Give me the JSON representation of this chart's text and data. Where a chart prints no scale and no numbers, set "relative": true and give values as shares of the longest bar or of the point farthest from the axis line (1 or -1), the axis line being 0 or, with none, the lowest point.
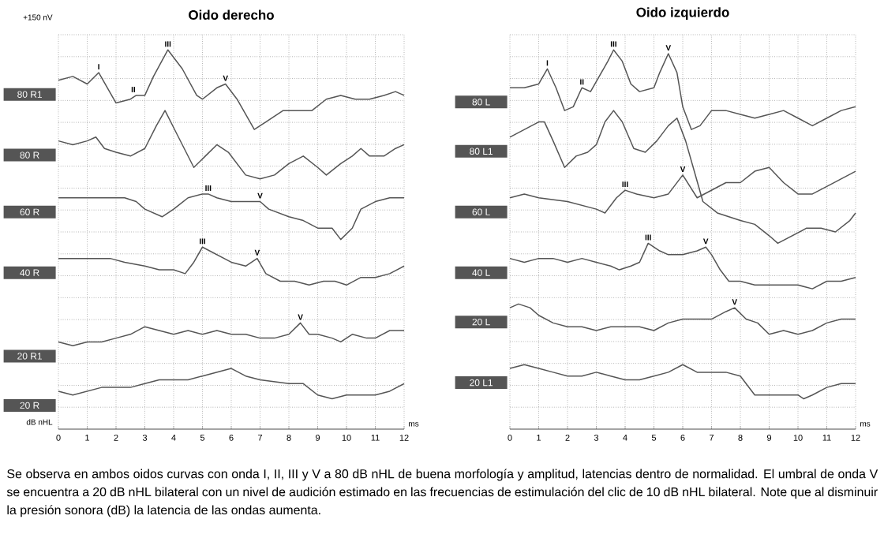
{
  "chart_data": [
    {
      "type": "line",
      "title": "Oido derecho",
      "relative": true,
      "grid": true,
      "xlim": [
        0,
        12
      ],
      "xticks": [
        0,
        1,
        2,
        3,
        4,
        5,
        6,
        7,
        8,
        9,
        10,
        11,
        12
      ],
      "series": [
        {
          "name": "80 R1",
          "color": "#555555",
          "x": [
            0,
            0.5,
            1,
            1.4,
            1.7,
            2,
            2.5,
            2.7,
            3,
            3.3,
            3.8,
            4.3,
            4.8,
            5,
            5.5,
            5.8,
            6.2,
            6.8,
            7.2,
            7.8,
            8.3,
            8.8,
            9.3,
            9.8,
            10.3,
            10.8,
            11.3,
            11.7,
            12
          ],
          "values": [
            0.92,
            0.93,
            0.91,
            0.94,
            0.9,
            0.86,
            0.87,
            0.88,
            0.88,
            0.93,
            1.0,
            0.95,
            0.88,
            0.87,
            0.9,
            0.91,
            0.87,
            0.79,
            0.81,
            0.84,
            0.84,
            0.84,
            0.87,
            0.88,
            0.87,
            0.87,
            0.88,
            0.89,
            0.88
          ]
        },
        {
          "name": "80 R",
          "color": "#555555",
          "x": [
            0,
            0.5,
            1,
            1.3,
            1.6,
            2,
            2.5,
            3,
            3.4,
            3.7,
            4.1,
            4.7,
            5.1,
            5.5,
            5.9,
            6.5,
            7,
            7.5,
            8,
            8.5,
            9,
            9.3,
            9.8,
            10.2,
            10.5,
            10.8,
            11.3,
            11.7,
            12
          ],
          "values": [
            0.76,
            0.75,
            0.76,
            0.77,
            0.74,
            0.73,
            0.72,
            0.74,
            0.8,
            0.84,
            0.78,
            0.69,
            0.72,
            0.75,
            0.73,
            0.67,
            0.66,
            0.67,
            0.7,
            0.72,
            0.69,
            0.67,
            0.7,
            0.72,
            0.74,
            0.72,
            0.72,
            0.74,
            0.75
          ]
        },
        {
          "name": "60 R",
          "color": "#555555",
          "x": [
            0,
            0.5,
            1,
            2,
            2.3,
            2.7,
            3,
            3.6,
            4,
            4.5,
            5,
            5.2,
            5.5,
            6,
            6.5,
            7,
            7.3,
            8,
            8.5,
            9,
            9.5,
            9.8,
            10.2,
            10.5,
            11,
            11.5,
            12
          ],
          "values": [
            0.61,
            0.61,
            0.61,
            0.61,
            0.61,
            0.6,
            0.58,
            0.56,
            0.58,
            0.61,
            0.62,
            0.62,
            0.61,
            0.6,
            0.6,
            0.6,
            0.58,
            0.56,
            0.55,
            0.53,
            0.53,
            0.5,
            0.53,
            0.58,
            0.6,
            0.61,
            0.61
          ]
        },
        {
          "name": "40 R",
          "color": "#555555",
          "x": [
            0,
            0.5,
            1,
            1.8,
            2.3,
            3,
            3.5,
            4,
            4.4,
            4.7,
            5,
            5.5,
            6,
            6.5,
            6.9,
            7.2,
            7.7,
            8.2,
            8.7,
            9.2,
            9.6,
            10,
            10.5,
            11,
            11.5,
            12
          ],
          "values": [
            0.45,
            0.45,
            0.45,
            0.45,
            0.44,
            0.43,
            0.42,
            0.42,
            0.41,
            0.44,
            0.48,
            0.46,
            0.44,
            0.43,
            0.45,
            0.41,
            0.39,
            0.39,
            0.38,
            0.39,
            0.39,
            0.38,
            0.4,
            0.4,
            0.41,
            0.43
          ]
        },
        {
          "name": "20 R1",
          "color": "#555555",
          "x": [
            0,
            0.5,
            1,
            1.5,
            2,
            2.5,
            3,
            3.5,
            4,
            4.5,
            5,
            5.5,
            6,
            6.5,
            7,
            7.5,
            8,
            8.4,
            8.7,
            9,
            9.5,
            9.8,
            10.2,
            10.7,
            11,
            11.5,
            12
          ],
          "values": [
            0.23,
            0.22,
            0.23,
            0.23,
            0.24,
            0.25,
            0.27,
            0.26,
            0.25,
            0.26,
            0.25,
            0.26,
            0.25,
            0.25,
            0.24,
            0.24,
            0.25,
            0.28,
            0.25,
            0.25,
            0.24,
            0.23,
            0.25,
            0.24,
            0.24,
            0.26,
            0.26
          ]
        },
        {
          "name": "20 R",
          "color": "#555555",
          "x": [
            0,
            0.5,
            1,
            1.5,
            2,
            2.5,
            3,
            3.5,
            4,
            4.5,
            5,
            6,
            6.5,
            7,
            8,
            8.5,
            9,
            9.5,
            10,
            10.5,
            11,
            11.5,
            12
          ],
          "values": [
            0.1,
            0.09,
            0.1,
            0.11,
            0.11,
            0.11,
            0.12,
            0.13,
            0.13,
            0.13,
            0.14,
            0.16,
            0.14,
            0.13,
            0.12,
            0.12,
            0.09,
            0.08,
            0.09,
            0.09,
            0.09,
            0.1,
            0.12
          ]
        }
      ],
      "annotations": [
        {
          "text": "I",
          "x": 1.4,
          "y": 0.94
        },
        {
          "text": "II",
          "x": 2.6,
          "y": 0.88
        },
        {
          "text": "III",
          "x": 3.8,
          "y": 1.0
        },
        {
          "text": "V",
          "x": 5.8,
          "y": 0.91
        },
        {
          "text": "III",
          "x": 5.2,
          "y": 0.62
        },
        {
          "text": "V",
          "x": 7.0,
          "y": 0.6
        },
        {
          "text": "III",
          "x": 5.0,
          "y": 0.48
        },
        {
          "text": "V",
          "x": 6.9,
          "y": 0.45
        },
        {
          "text": "V",
          "x": 8.4,
          "y": 0.28
        },
        "+150 nV",
        "dB nHL",
        "ms",
        "Se observa en ambos oidos curvas con onda I, II, III y V a 80 dB nHL de buena morfología y amplitud, latencias dentro de normalidad. El umbral de onda V se encuentra a 20 dB nHL bilateral con un nivel de audición estimado en las frecuencias de estimulación del clic de 10 dB nHL bilateral. Note que al disminuir la presión sonora (dB) la latencia de las ondas aumenta."
      ]
    },
    {
      "type": "line",
      "title": "Oido izquierdo",
      "relative": true,
      "grid": true,
      "xlim": [
        0,
        12
      ],
      "xticks": [
        0,
        1,
        2,
        3,
        4,
        5,
        6,
        7,
        8,
        9,
        10,
        11,
        12
      ],
      "series": [
        {
          "name": "80 L",
          "color": "#555555",
          "x": [
            0,
            0.5,
            1,
            1.3,
            1.6,
            1.9,
            2.2,
            2.5,
            2.8,
            3.1,
            3.4,
            3.6,
            3.9,
            4.2,
            4.5,
            5,
            5.2,
            5.5,
            5.8,
            6,
            6.3,
            6.6,
            7,
            7.5,
            8,
            8.5,
            9,
            9.5,
            10,
            10.5,
            11,
            11.5,
            12
          ],
          "values": [
            0.9,
            0.9,
            0.91,
            0.95,
            0.9,
            0.84,
            0.85,
            0.9,
            0.89,
            0.93,
            0.97,
            1.0,
            0.97,
            0.91,
            0.89,
            0.9,
            0.94,
            0.99,
            0.94,
            0.85,
            0.79,
            0.8,
            0.84,
            0.84,
            0.83,
            0.82,
            0.83,
            0.84,
            0.82,
            0.8,
            0.82,
            0.84,
            0.85
          ]
        },
        {
          "name": "80 L1",
          "color": "#555555",
          "x": [
            0,
            0.5,
            1,
            1.2,
            1.5,
            1.9,
            2.3,
            2.7,
            3,
            3.3,
            3.6,
            3.9,
            4.3,
            4.7,
            5.1,
            5.5,
            5.8,
            6.1,
            6.4,
            6.7,
            7.2,
            8,
            8.5,
            9,
            9.3,
            9.8,
            10.3,
            10.8,
            11.3,
            11.8,
            12
          ],
          "values": [
            0.77,
            0.79,
            0.81,
            0.81,
            0.76,
            0.69,
            0.72,
            0.73,
            0.75,
            0.81,
            0.84,
            0.81,
            0.74,
            0.73,
            0.76,
            0.8,
            0.82,
            0.76,
            0.68,
            0.6,
            0.57,
            0.55,
            0.54,
            0.51,
            0.49,
            0.51,
            0.53,
            0.53,
            0.52,
            0.55,
            0.57
          ]
        },
        {
          "name": "60 L",
          "color": "#555555",
          "x": [
            0,
            0.5,
            1,
            2,
            3,
            3.3,
            3.7,
            4,
            4.4,
            5,
            5.5,
            6,
            6.5,
            7,
            7.5,
            8,
            8.5,
            9,
            9.5,
            10,
            10.5,
            11,
            11.5,
            12
          ],
          "values": [
            0.61,
            0.62,
            0.61,
            0.6,
            0.58,
            0.57,
            0.61,
            0.63,
            0.62,
            0.61,
            0.62,
            0.67,
            0.61,
            0.63,
            0.65,
            0.65,
            0.68,
            0.69,
            0.65,
            0.62,
            0.62,
            0.64,
            0.66,
            0.68
          ]
        },
        {
          "name": "40 L",
          "color": "#555555",
          "x": [
            0,
            0.5,
            1,
            1.5,
            2,
            2.5,
            3,
            3.5,
            3.8,
            4.2,
            4.5,
            4.8,
            5.2,
            5.5,
            6,
            6.5,
            6.8,
            7,
            7.3,
            7.6,
            8,
            8.5,
            9,
            9.5,
            10,
            10.5,
            11,
            11.5,
            12
          ],
          "values": [
            0.45,
            0.44,
            0.45,
            0.45,
            0.44,
            0.45,
            0.44,
            0.43,
            0.42,
            0.43,
            0.44,
            0.49,
            0.47,
            0.46,
            0.46,
            0.47,
            0.48,
            0.46,
            0.42,
            0.39,
            0.39,
            0.38,
            0.38,
            0.38,
            0.38,
            0.37,
            0.39,
            0.39,
            0.4
          ]
        },
        {
          "name": "20 L",
          "color": "#555555",
          "x": [
            0,
            0.3,
            0.7,
            1,
            1.5,
            2,
            2.5,
            3,
            3.5,
            4,
            4.5,
            5,
            5.5,
            6,
            6.5,
            7,
            7.5,
            7.8,
            8.2,
            8.6,
            9,
            9.5,
            10,
            10.5,
            11,
            11.5,
            12
          ],
          "values": [
            0.32,
            0.33,
            0.32,
            0.3,
            0.28,
            0.27,
            0.27,
            0.26,
            0.27,
            0.27,
            0.27,
            0.26,
            0.28,
            0.29,
            0.29,
            0.29,
            0.31,
            0.32,
            0.29,
            0.28,
            0.25,
            0.26,
            0.25,
            0.26,
            0.28,
            0.29,
            0.29
          ]
        },
        {
          "name": "20 L1",
          "color": "#555555",
          "x": [
            0,
            0.5,
            1,
            1.5,
            2,
            2.5,
            3,
            3.5,
            4,
            4.5,
            5,
            5.5,
            6,
            6.5,
            7,
            7.5,
            8,
            8.5,
            9,
            9.5,
            10,
            10.2,
            10.5,
            11,
            11.5,
            12
          ],
          "values": [
            0.16,
            0.17,
            0.16,
            0.15,
            0.14,
            0.14,
            0.15,
            0.14,
            0.13,
            0.13,
            0.14,
            0.15,
            0.17,
            0.15,
            0.15,
            0.15,
            0.14,
            0.09,
            0.09,
            0.09,
            0.09,
            0.08,
            0.09,
            0.11,
            0.12,
            0.12
          ]
        }
      ],
      "annotations": [
        {
          "text": "I",
          "x": 1.3,
          "y": 0.95
        },
        {
          "text": "II",
          "x": 2.5,
          "y": 0.9
        },
        {
          "text": "III",
          "x": 3.6,
          "y": 1.0
        },
        {
          "text": "V",
          "x": 5.5,
          "y": 0.99
        },
        {
          "text": "III",
          "x": 4.0,
          "y": 0.63
        },
        {
          "text": "V",
          "x": 6.0,
          "y": 0.67
        },
        {
          "text": "III",
          "x": 4.8,
          "y": 0.49
        },
        {
          "text": "V",
          "x": 6.8,
          "y": 0.48
        },
        {
          "text": "V",
          "x": 7.8,
          "y": 0.32
        },
        "ms"
      ]
    }
  ]
}
